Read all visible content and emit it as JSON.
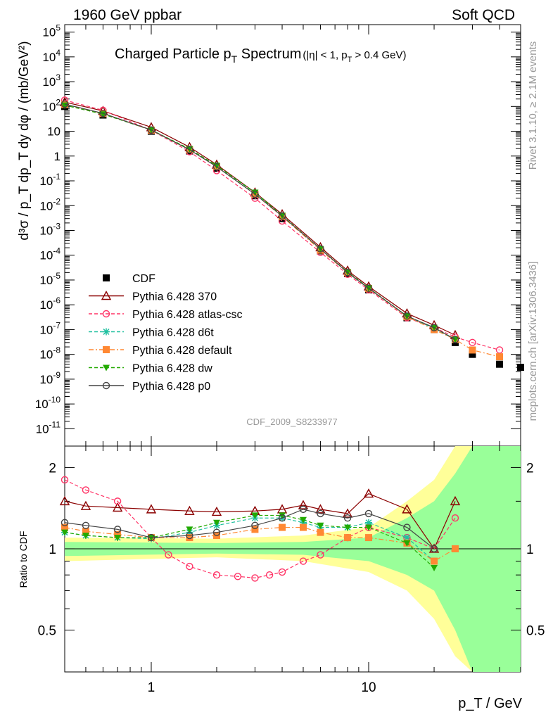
{
  "header": {
    "left": "1960 GeV ppbar",
    "right": "Soft QCD"
  },
  "title": {
    "main": "Charged Particle p",
    "main_sub": "T",
    "main_tail": " Spectrum",
    "cut": "(|η| < 1, p",
    "cut_sub": "T",
    "cut_tail": " > 0.4 GeV)"
  },
  "side": {
    "rivet": "Rivet 3.1.10, ≥ 2.1M events",
    "mcplots": "mcplots.cern.ch [arXiv:1306.3436]"
  },
  "analysis_id": "CDF_2009_S8233977",
  "axes": {
    "ylabel_top": "d³σ / p_T dp_T dy dφ / (mb/GeV²)",
    "ylabel_ratio": "Ratio to CDF",
    "xlabel": "p_T / GeV"
  },
  "colors": {
    "CDF": "#000000",
    "370": "#8b0000",
    "atlas-csc": "#ff3366",
    "d6t": "#20c0a0",
    "default": "#ff8833",
    "dw": "#22aa00",
    "p0": "#444444",
    "band_inner": "#99ff99",
    "band_outer": "#ffff99"
  },
  "legend": [
    {
      "label": "CDF",
      "key": "CDF",
      "marker": "square",
      "dash": "solid"
    },
    {
      "label": "Pythia 6.428 370",
      "key": "370",
      "marker": "triangle-open",
      "dash": "solid"
    },
    {
      "label": "Pythia 6.428 atlas-csc",
      "key": "atlas-csc",
      "marker": "circle-open",
      "dash": "dashed"
    },
    {
      "label": "Pythia 6.428 d6t",
      "key": "d6t",
      "marker": "star",
      "dash": "dashed"
    },
    {
      "label": "Pythia 6.428 default",
      "key": "default",
      "marker": "square",
      "dash": "dashdot"
    },
    {
      "label": "Pythia 6.428 dw",
      "key": "dw",
      "marker": "triangle-down",
      "dash": "dashed"
    },
    {
      "label": "Pythia 6.428 p0",
      "key": "p0",
      "marker": "circle-open",
      "dash": "solid"
    }
  ],
  "chart_data": [
    {
      "type": "scatter",
      "panel": "main",
      "xlabel": "p_T / GeV",
      "ylabel": "d³σ / p_T dp_T dy dφ / (mb/GeV²)",
      "xscale": "log",
      "yscale": "log",
      "xlim": [
        0.4,
        50
      ],
      "ylim": [
        2e-12,
        200000.0
      ],
      "x_tick_labels": [
        "1",
        "10"
      ],
      "y_tick_labels": [
        "10^-11",
        "10^-10",
        "10^-9",
        "10^-8",
        "10^-7",
        "10^-6",
        "10^-5",
        "10^-4",
        "10^-3",
        "10^-2",
        "10^-1",
        "1",
        "10",
        "10^2",
        "10^3",
        "10^4",
        "10^5"
      ],
      "legend_position": "bottom-left",
      "series": [
        {
          "name": "CDF",
          "x": [
            0.4,
            0.6,
            1,
            1.5,
            2,
            3,
            4,
            6,
            8,
            10,
            15,
            20,
            25,
            30,
            40,
            50
          ],
          "y": [
            100,
            45,
            10,
            1.6,
            0.32,
            0.025,
            0.003,
            0.00015,
            1.8e-05,
            4e-06,
            3e-07,
            1e-07,
            3e-08,
            1e-08,
            4e-09,
            3e-09
          ]
        },
        {
          "name": "Pythia 6.428 370",
          "x": [
            0.4,
            0.6,
            1,
            1.5,
            2,
            3,
            4,
            6,
            8,
            10,
            15,
            20,
            25
          ],
          "y": [
            150,
            66,
            14.5,
            2.3,
            0.45,
            0.034,
            0.0045,
            0.00021,
            2.4e-05,
            5.5e-06,
            4.5e-07,
            1.5e-07,
            6e-08
          ]
        },
        {
          "name": "Pythia 6.428 atlas-csc",
          "x": [
            0.4,
            0.6,
            1,
            1.5,
            2,
            3,
            4,
            6,
            8,
            10,
            15,
            20,
            25,
            30,
            40
          ],
          "y": [
            180,
            70,
            11,
            1.5,
            0.26,
            0.02,
            0.0024,
            0.00013,
            1.7e-05,
            4e-06,
            3e-07,
            1.2e-07,
            5e-08,
            3e-08,
            1.5e-08
          ]
        },
        {
          "name": "Pythia 6.428 d6t",
          "x": [
            0.4,
            0.6,
            1,
            1.5,
            2,
            3,
            4,
            6,
            8,
            10,
            15,
            20,
            25
          ],
          "y": [
            115,
            50,
            11.2,
            1.9,
            0.4,
            0.033,
            0.0039,
            0.00018,
            2.1e-05,
            4.8e-06,
            3.5e-07,
            1.1e-07,
            4e-08
          ]
        },
        {
          "name": "Pythia 6.428 default",
          "x": [
            0.4,
            0.6,
            1,
            1.5,
            2,
            3,
            4,
            6,
            8,
            10,
            15,
            20,
            25,
            30,
            40
          ],
          "y": [
            120,
            52,
            11,
            1.8,
            0.37,
            0.029,
            0.0036,
            0.00016,
            2e-05,
            4.5e-06,
            3.3e-07,
            1e-07,
            4e-08,
            1.5e-08,
            8e-09
          ]
        },
        {
          "name": "Pythia 6.428 dw",
          "x": [
            0.4,
            0.6,
            1,
            1.5,
            2,
            3,
            4,
            6,
            8,
            10,
            15,
            20,
            25
          ],
          "y": [
            112,
            49,
            11.3,
            1.95,
            0.41,
            0.034,
            0.004,
            0.00018,
            2.1e-05,
            4.8e-06,
            3.5e-07,
            1.2e-07,
            4e-08
          ]
        },
        {
          "name": "Pythia 6.428 p0",
          "x": [
            0.4,
            0.6,
            1,
            1.5,
            2,
            3,
            4,
            6,
            8,
            10,
            15,
            20,
            25
          ],
          "y": [
            125,
            53,
            11.2,
            1.8,
            0.37,
            0.029,
            0.0038,
            0.00018,
            2e-05,
            4.6e-06,
            3.5e-07,
            1.2e-07,
            4e-08
          ]
        }
      ]
    },
    {
      "type": "scatter",
      "panel": "ratio",
      "ylabel": "Ratio to CDF",
      "xscale": "log",
      "yscale": "log",
      "xlim": [
        0.4,
        50
      ],
      "ylim": [
        0.35,
        2.4
      ],
      "y_tick_labels": [
        "0.5",
        "1",
        "2"
      ],
      "reference_line": 1,
      "band": {
        "x": [
          0.4,
          2,
          5,
          10,
          15,
          20,
          25,
          30,
          40,
          50
        ],
        "inner_low": [
          0.94,
          0.96,
          0.95,
          0.9,
          0.8,
          0.7,
          0.5,
          0.35,
          0.35,
          0.35
        ],
        "inner_high": [
          1.06,
          1.05,
          1.06,
          1.1,
          1.3,
          1.5,
          1.9,
          2.4,
          2.4,
          2.4
        ],
        "outer_low": [
          0.9,
          0.93,
          0.9,
          0.82,
          0.7,
          0.55,
          0.4,
          0.35,
          0.35,
          0.35
        ],
        "outer_high": [
          1.1,
          1.09,
          1.12,
          1.2,
          1.5,
          1.8,
          2.4,
          2.4,
          2.4,
          2.4
        ]
      },
      "series": [
        {
          "name": "Pythia 6.428 370",
          "x": [
            0.4,
            0.5,
            0.7,
            1,
            1.5,
            2,
            3,
            4,
            5,
            6,
            8,
            10,
            15,
            20,
            25
          ],
          "y": [
            1.5,
            1.44,
            1.42,
            1.4,
            1.38,
            1.37,
            1.38,
            1.4,
            1.45,
            1.4,
            1.35,
            1.6,
            1.4,
            1.0,
            1.5
          ]
        },
        {
          "name": "Pythia 6.428 atlas-csc",
          "x": [
            0.4,
            0.5,
            0.7,
            1,
            1.2,
            1.5,
            2,
            2.5,
            3,
            3.5,
            4,
            5,
            6,
            8,
            10,
            15,
            20,
            25
          ],
          "y": [
            1.8,
            1.65,
            1.5,
            1.1,
            0.95,
            0.86,
            0.8,
            0.79,
            0.78,
            0.8,
            0.82,
            0.9,
            0.95,
            1.1,
            1.2,
            1.1,
            1.0,
            1.3
          ]
        },
        {
          "name": "Pythia 6.428 d6t",
          "x": [
            0.4,
            0.5,
            0.7,
            1,
            1.5,
            2,
            3,
            4,
            5,
            6,
            8,
            10,
            15,
            20
          ],
          "y": [
            1.15,
            1.12,
            1.1,
            1.09,
            1.15,
            1.22,
            1.3,
            1.3,
            1.25,
            1.2,
            1.2,
            1.25,
            1.1,
            0.9
          ]
        },
        {
          "name": "Pythia 6.428 default",
          "x": [
            0.4,
            0.5,
            0.7,
            1,
            1.5,
            2,
            3,
            4,
            5,
            6,
            8,
            10,
            15,
            20,
            25
          ],
          "y": [
            1.2,
            1.16,
            1.13,
            1.1,
            1.1,
            1.12,
            1.18,
            1.2,
            1.2,
            1.15,
            1.1,
            1.1,
            1.05,
            0.9,
            1.0
          ]
        },
        {
          "name": "Pythia 6.428 dw",
          "x": [
            0.4,
            0.5,
            0.7,
            1,
            1.5,
            2,
            3,
            4,
            5,
            6,
            8,
            10,
            15,
            20
          ],
          "y": [
            1.15,
            1.12,
            1.1,
            1.1,
            1.18,
            1.25,
            1.33,
            1.33,
            1.28,
            1.22,
            1.2,
            1.2,
            1.05,
            0.85
          ]
        },
        {
          "name": "Pythia 6.428 p0",
          "x": [
            0.4,
            0.5,
            0.7,
            1,
            1.5,
            2,
            3,
            4,
            5,
            6,
            8,
            10,
            15,
            20
          ],
          "y": [
            1.25,
            1.22,
            1.18,
            1.1,
            1.12,
            1.15,
            1.22,
            1.3,
            1.4,
            1.35,
            1.3,
            1.35,
            1.2,
            1.0
          ]
        }
      ]
    }
  ]
}
